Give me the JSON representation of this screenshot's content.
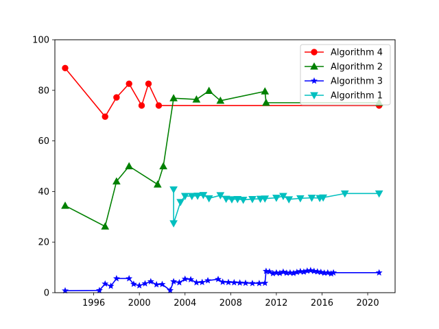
{
  "chart_data": {
    "type": "line",
    "title": "",
    "xlabel": "",
    "ylabel": "",
    "xlim": [
      1992.6,
      2022.4
    ],
    "ylim": [
      0,
      100
    ],
    "xticks": [
      1996,
      2000,
      2004,
      2008,
      2012,
      2016,
      2020
    ],
    "yticks": [
      0,
      20,
      40,
      60,
      80,
      100
    ],
    "grid": false,
    "legend_position": "top-right",
    "series": [
      {
        "name": "Algorithm 4",
        "color": "#ff0000",
        "marker": "circle",
        "points": [
          [
            1993.5,
            88.8
          ],
          [
            1997.0,
            69.6
          ],
          [
            1998.0,
            77.2
          ],
          [
            1999.1,
            82.6
          ],
          [
            2000.2,
            74.0
          ],
          [
            2000.8,
            82.6
          ],
          [
            2001.7,
            74.0
          ],
          [
            2021.0,
            74.0
          ]
        ]
      },
      {
        "name": "Algorithm 2",
        "color": "#008000",
        "marker": "triangle-up",
        "points": [
          [
            1993.5,
            34.4
          ],
          [
            1997.0,
            26.2
          ],
          [
            1998.0,
            44.0
          ],
          [
            1999.1,
            50.0
          ],
          [
            2001.6,
            42.8
          ],
          [
            2002.1,
            50.0
          ],
          [
            2003.0,
            76.9
          ],
          [
            2005.0,
            76.4
          ],
          [
            2006.1,
            79.8
          ],
          [
            2007.1,
            75.9
          ],
          [
            2011.0,
            79.6
          ],
          [
            2011.1,
            75.1
          ],
          [
            2021.0,
            75.1
          ]
        ]
      },
      {
        "name": "Algorithm 3",
        "color": "#0000ff",
        "marker": "star",
        "points": [
          [
            1993.5,
            0.8
          ],
          [
            1996.5,
            0.9
          ],
          [
            1997.0,
            3.5
          ],
          [
            1997.5,
            2.6
          ],
          [
            1998.0,
            5.6
          ],
          [
            1999.1,
            5.6
          ],
          [
            1999.5,
            3.4
          ],
          [
            2000.0,
            2.8
          ],
          [
            2000.5,
            3.6
          ],
          [
            2001.0,
            4.4
          ],
          [
            2001.5,
            3.2
          ],
          [
            2002.0,
            3.3
          ],
          [
            2002.7,
            0.9
          ],
          [
            2003.0,
            4.4
          ],
          [
            2003.5,
            4.0
          ],
          [
            2004.0,
            5.4
          ],
          [
            2004.5,
            5.2
          ],
          [
            2005.0,
            4.0
          ],
          [
            2005.5,
            4.1
          ],
          [
            2006.0,
            4.8
          ],
          [
            2006.9,
            5.3
          ],
          [
            2007.3,
            4.2
          ],
          [
            2007.8,
            4.1
          ],
          [
            2008.3,
            4.0
          ],
          [
            2008.8,
            3.9
          ],
          [
            2009.3,
            3.8
          ],
          [
            2009.9,
            3.7
          ],
          [
            2010.5,
            3.7
          ],
          [
            2011.0,
            3.8
          ],
          [
            2011.1,
            8.5
          ],
          [
            2011.4,
            8.3
          ],
          [
            2011.7,
            7.6
          ],
          [
            2012.0,
            7.9
          ],
          [
            2012.3,
            7.7
          ],
          [
            2012.6,
            8.2
          ],
          [
            2012.9,
            7.8
          ],
          [
            2013.2,
            7.9
          ],
          [
            2013.5,
            7.7
          ],
          [
            2013.8,
            8.1
          ],
          [
            2014.1,
            8.4
          ],
          [
            2014.4,
            8.2
          ],
          [
            2014.7,
            8.6
          ],
          [
            2015.0,
            8.8
          ],
          [
            2015.3,
            8.5
          ],
          [
            2015.6,
            8.3
          ],
          [
            2015.9,
            8.1
          ],
          [
            2016.2,
            7.8
          ],
          [
            2016.5,
            7.9
          ],
          [
            2016.8,
            7.5
          ],
          [
            2017.0,
            7.9
          ],
          [
            2021.0,
            7.9
          ]
        ]
      },
      {
        "name": "Algorithm 1",
        "color": "#00bfbf",
        "marker": "triangle-down",
        "points": [
          [
            2003.0,
            40.8
          ],
          [
            2003.0,
            27.4
          ],
          [
            2003.6,
            35.8
          ],
          [
            2004.0,
            38.2
          ],
          [
            2004.6,
            38.2
          ],
          [
            2005.1,
            38.3
          ],
          [
            2005.6,
            38.6
          ],
          [
            2006.1,
            37.3
          ],
          [
            2007.1,
            38.5
          ],
          [
            2007.6,
            37.1
          ],
          [
            2008.1,
            36.9
          ],
          [
            2008.6,
            37.0
          ],
          [
            2009.1,
            36.7
          ],
          [
            2009.9,
            37.0
          ],
          [
            2010.6,
            37.1
          ],
          [
            2011.0,
            37.2
          ],
          [
            2012.0,
            37.5
          ],
          [
            2012.6,
            38.2
          ],
          [
            2013.1,
            36.9
          ],
          [
            2014.1,
            37.3
          ],
          [
            2015.1,
            37.5
          ],
          [
            2015.8,
            37.4
          ],
          [
            2016.1,
            37.6
          ],
          [
            2018.0,
            39.2
          ],
          [
            2021.0,
            39.2
          ]
        ]
      }
    ]
  }
}
